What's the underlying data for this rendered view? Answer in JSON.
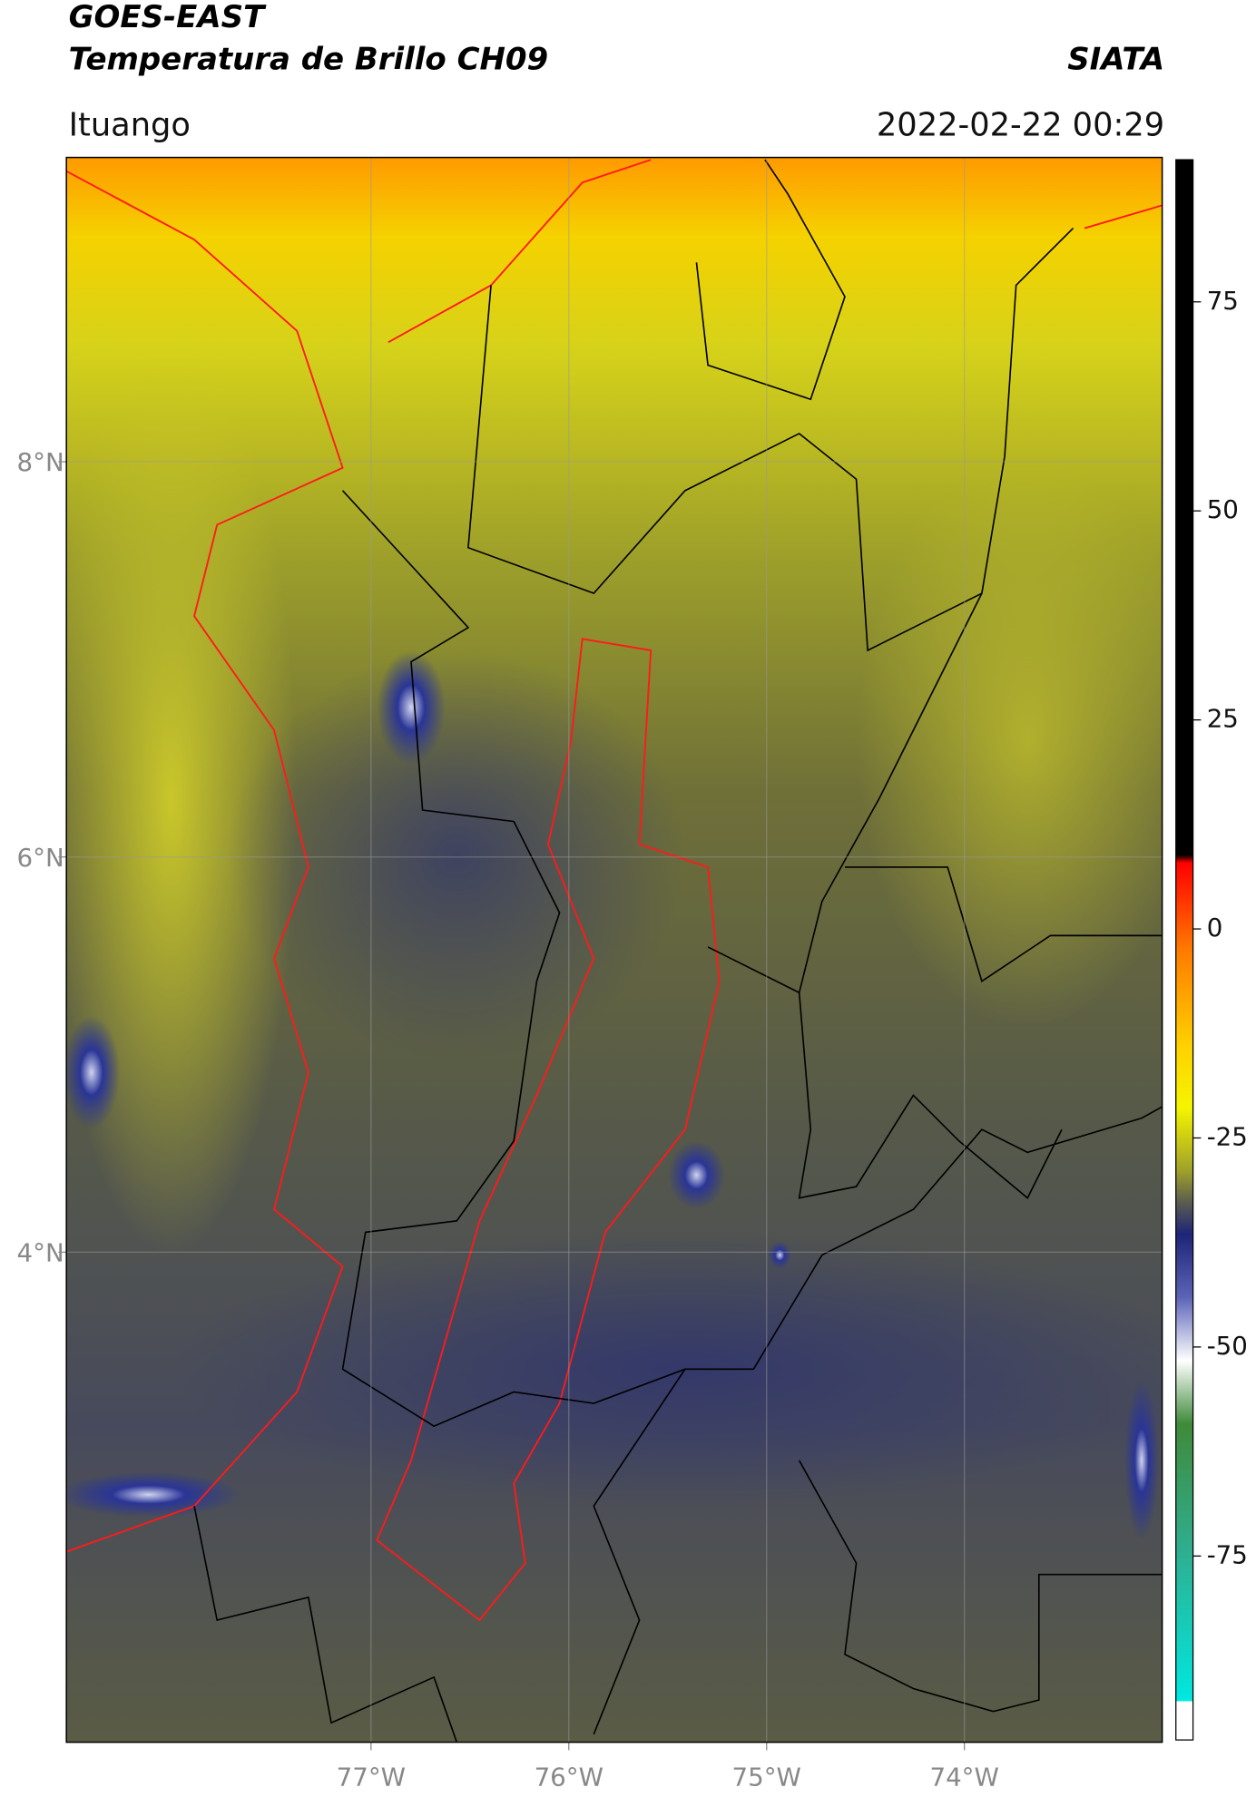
{
  "header": {
    "title_line1": "GOES-EAST",
    "title_line2": "Temperatura de Brillo CH09",
    "organization": "SIATA",
    "location": "Ituango",
    "datetime": "2022-02-22 00:29"
  },
  "map": {
    "xlim": [
      -78.54,
      -73.0
    ],
    "ylim": [
      1.52,
      9.54
    ],
    "xticks": [
      {
        "value": -77,
        "label": "77°W"
      },
      {
        "value": -76,
        "label": "76°W"
      },
      {
        "value": -75,
        "label": "75°W"
      },
      {
        "value": -74,
        "label": "74°W"
      }
    ],
    "yticks": [
      {
        "value": 8,
        "label": "8°N"
      },
      {
        "value": 6,
        "label": "6°N"
      },
      {
        "value": 4,
        "label": "4°N"
      }
    ],
    "grid": true
  },
  "colorbar": {
    "lim": [
      -97,
      92
    ],
    "ticks": [
      75,
      50,
      25,
      0,
      -25,
      -50,
      -75
    ]
  }
}
